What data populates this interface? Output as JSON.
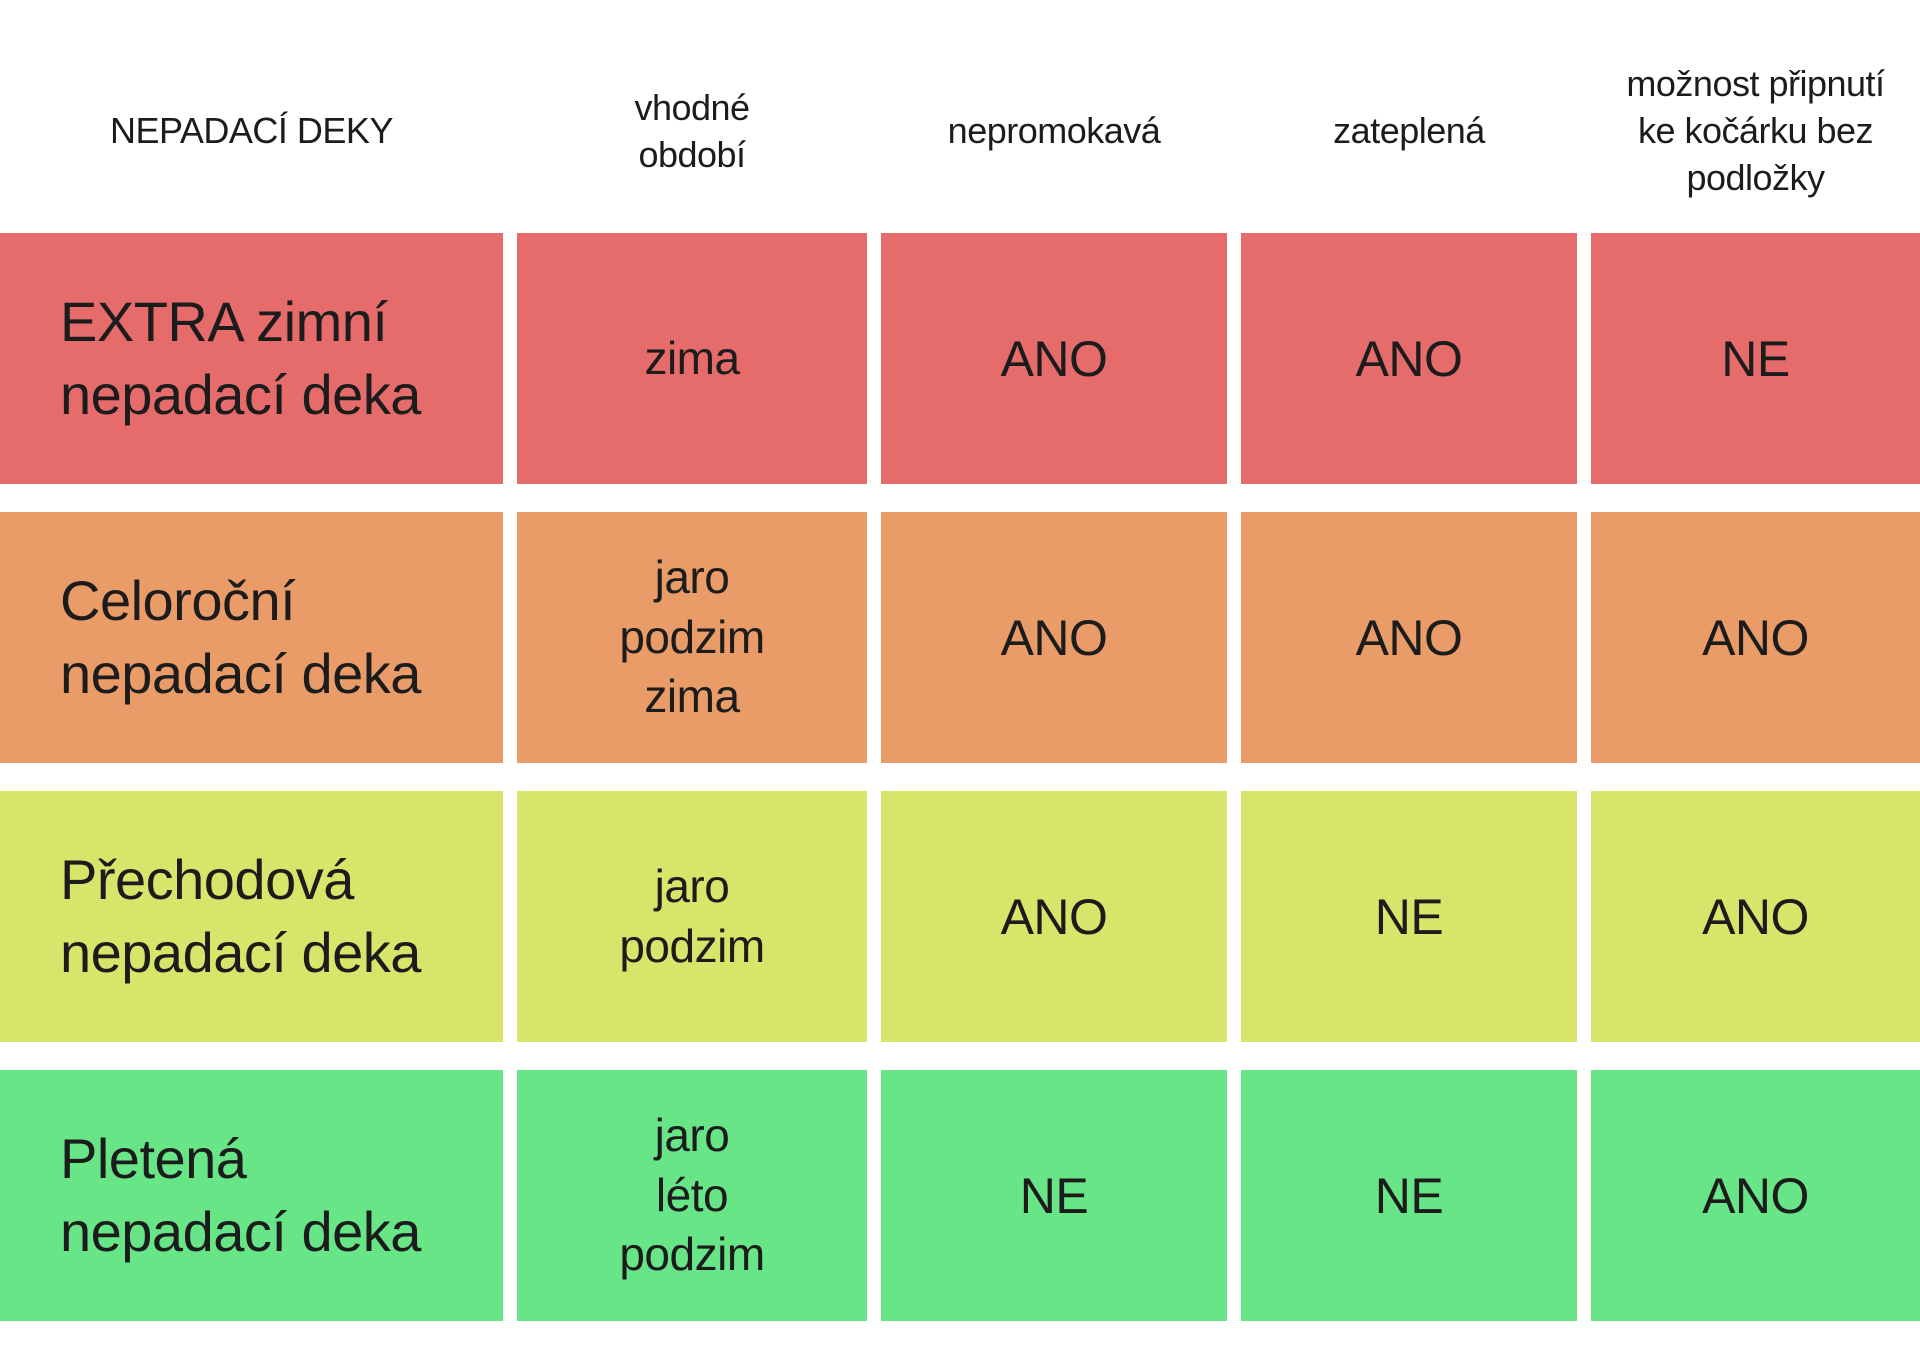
{
  "page": {
    "background": "#ffffff",
    "text_color": "#1c1c1c"
  },
  "table": {
    "headers": [
      {
        "label": "NEPADACÍ DEKY"
      },
      {
        "label": "vhodné\nobdobí"
      },
      {
        "label": "nepromokavá"
      },
      {
        "label": "zateplená"
      },
      {
        "label": "možnost připnutí\nke kočárku bez\npodložky"
      }
    ],
    "rows": [
      {
        "color": "#E66B6B",
        "name": "EXTRA zimní\nnepadací deka",
        "season": "zima",
        "nepromokava": "ANO",
        "zateplena": "ANO",
        "pripnuti": "NE"
      },
      {
        "color": "#E99C67",
        "name": "Celoroční\nnepadací deka",
        "season": "jaro\npodzim\nzima",
        "nepromokava": "ANO",
        "zateplena": "ANO",
        "pripnuti": "ANO"
      },
      {
        "color": "#D8E56B",
        "name": "Přechodová\nnepadací deka",
        "season": "jaro\npodzim",
        "nepromokava": "ANO",
        "zateplena": "NE",
        "pripnuti": "ANO"
      },
      {
        "color": "#67E587",
        "name": "Pletená\nnepadací deka",
        "season": "jaro\nléto\npodzim",
        "nepromokava": "NE",
        "zateplena": "NE",
        "pripnuti": "ANO"
      }
    ]
  },
  "chart_data": {
    "type": "table",
    "title": "NEPADACÍ DEKY",
    "columns": [
      "NEPADACÍ DEKY",
      "vhodné období",
      "nepromokavá",
      "zateplená",
      "možnost připnutí ke kočárku bez podložky"
    ],
    "rows": [
      [
        "EXTRA zimní nepadací deka",
        "zima",
        "ANO",
        "ANO",
        "NE"
      ],
      [
        "Celoroční nepadací deka",
        "jaro, podzim, zima",
        "ANO",
        "ANO",
        "ANO"
      ],
      [
        "Přechodová nepadací deka",
        "jaro, podzim",
        "ANO",
        "NE",
        "ANO"
      ],
      [
        "Pletená nepadací deka",
        "jaro, léto, podzim",
        "NE",
        "NE",
        "ANO"
      ]
    ],
    "row_colors": [
      "#E66B6B",
      "#E99C67",
      "#D8E56B",
      "#67E587"
    ],
    "legend_position": "none",
    "grid": false
  }
}
